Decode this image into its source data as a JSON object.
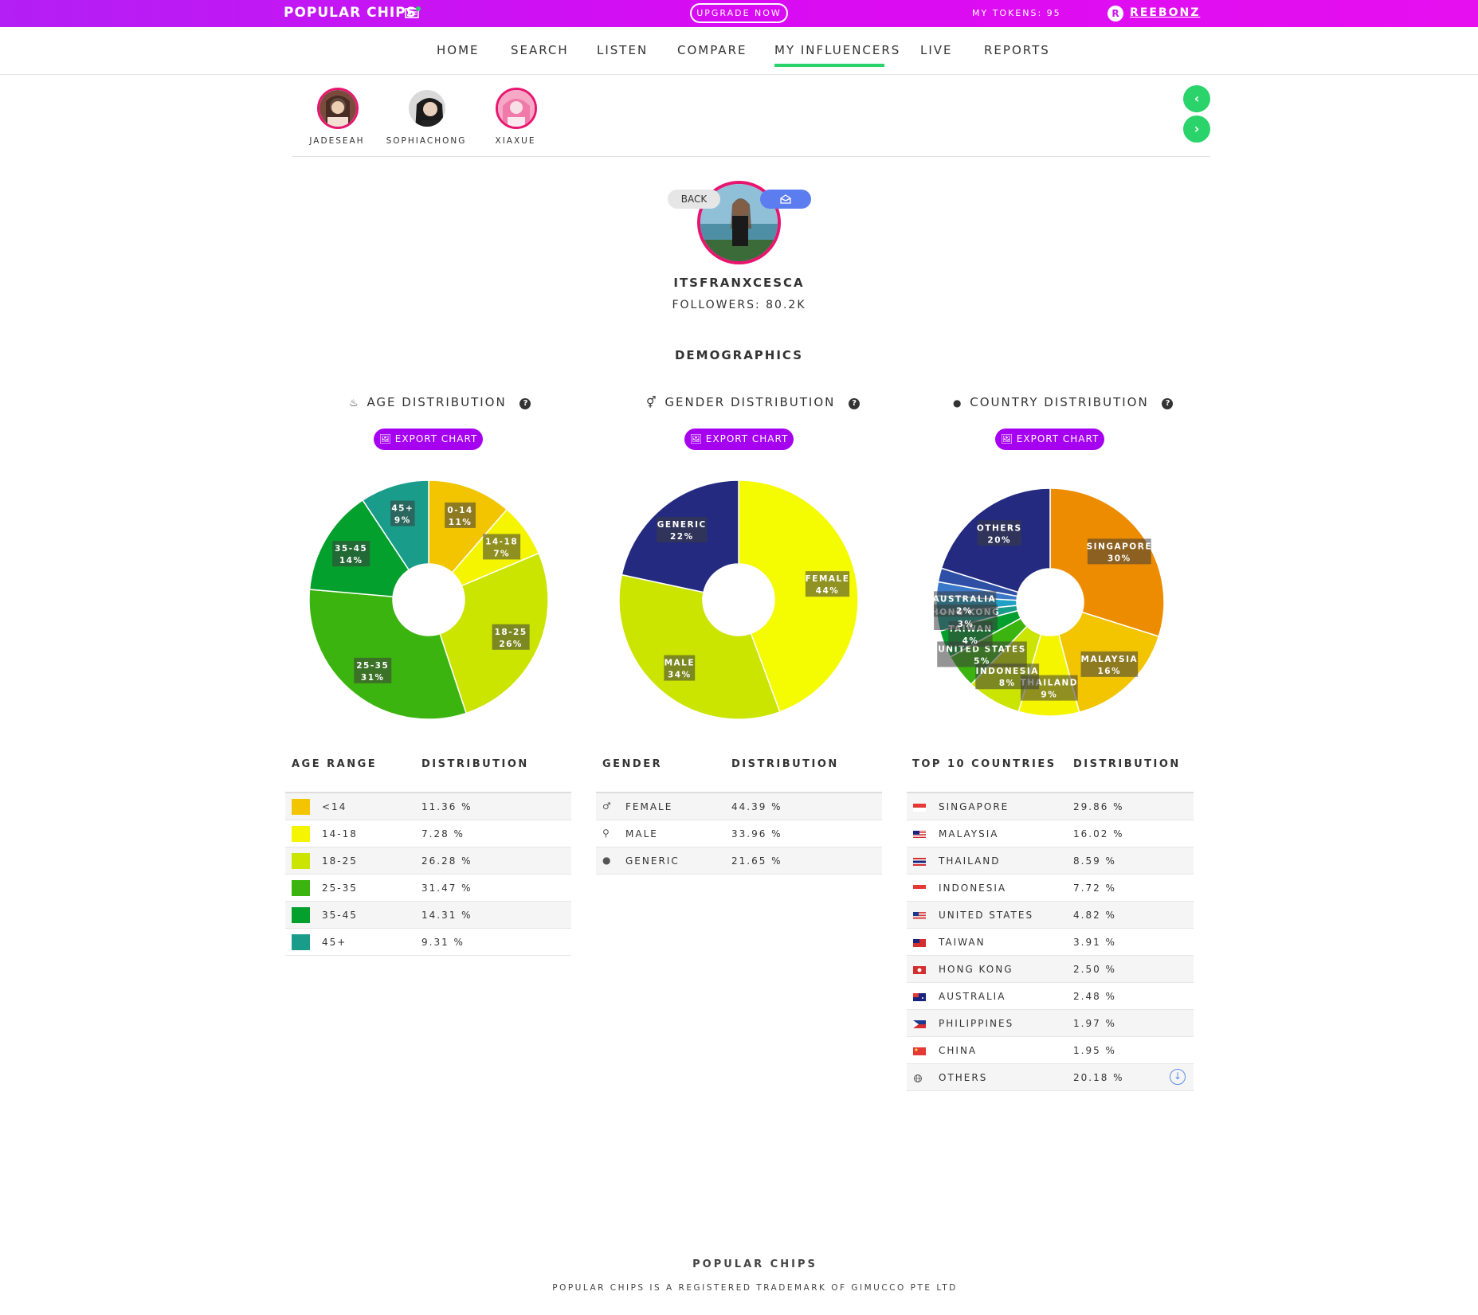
{
  "topbar": {
    "brand": "POPULAR CHIPS",
    "upgrade_label": "UPGRADE NOW",
    "tokens": "MY TOKENS: 95",
    "account": "REEBONZ",
    "account_icon": "R"
  },
  "nav": {
    "items": [
      "HOME",
      "SEARCH",
      "LISTEN",
      "COMPARE",
      "MY INFLUENCERS",
      "LIVE",
      "REPORTS"
    ],
    "active": "MY INFLUENCERS"
  },
  "influencers": [
    {
      "name": "JADESEAH"
    },
    {
      "name": "SOPHIACHONG"
    },
    {
      "name": "XIAXUE"
    }
  ],
  "strip_controls": {
    "prev_icon": "chevron-left-icon",
    "next_icon": "chevron-right-icon",
    "prev": "‹",
    "next": "›"
  },
  "profile": {
    "back_label": "BACK",
    "username": "ITSFRANXCESCA",
    "followers": "FOLLOWERS: 80.2K"
  },
  "demographics": {
    "title": "DEMOGRAPHICS",
    "age_title": "AGE DISTRIBUTION",
    "gender_title": "GENDER DISTRIBUTION",
    "country_title": "COUNTRY DISTRIBUTION",
    "export_label": "EXPORT CHART",
    "help": "?"
  },
  "chart_data": [
    {
      "type": "pie",
      "title": "AGE DISTRIBUTION",
      "categories": [
        "0-14",
        "14-18",
        "18-25",
        "25-35",
        "35-45",
        "45+"
      ],
      "values": [
        11.36,
        7.28,
        26.28,
        31.47,
        14.31,
        9.31
      ],
      "labels": [
        "11%",
        "7%",
        "26%",
        "31%",
        "14%",
        "9%"
      ],
      "colors": [
        "#f2c500",
        "#f5f500",
        "#cbe400",
        "#3cb40f",
        "#04a02d",
        "#1a9c8a"
      ]
    },
    {
      "type": "pie",
      "title": "GENDER DISTRIBUTION",
      "categories": [
        "FEMALE",
        "MALE",
        "GENERIC"
      ],
      "values": [
        44.39,
        33.96,
        21.65
      ],
      "labels": [
        "44%",
        "34%",
        "22%"
      ],
      "colors": [
        "#f5fb00",
        "#cbe400",
        "#232a80"
      ]
    },
    {
      "type": "pie",
      "title": "COUNTRY DISTRIBUTION",
      "categories": [
        "SINGAPORE",
        "MALAYSIA",
        "THAILAND",
        "INDONESIA",
        "UNITED STATES",
        "TAIWAN",
        "HONG KONG",
        "AUSTRALIA",
        "PHILIPPINES",
        "CHINA",
        "OTHERS"
      ],
      "values": [
        29.86,
        16.02,
        8.59,
        7.72,
        4.82,
        3.91,
        2.5,
        2.48,
        1.97,
        1.95,
        20.18
      ],
      "labels": [
        "30%",
        "16%",
        "9%",
        "8%",
        "5%",
        "4%",
        "3%",
        "2%",
        "",
        "",
        "20%"
      ],
      "colors": [
        "#ee8c00",
        "#f2c500",
        "#f5f500",
        "#cbe400",
        "#3cb40f",
        "#04a02d",
        "#1a9c8a",
        "#1fa0c4",
        "#3a78c9",
        "#2f4fa6",
        "#232a80"
      ]
    }
  ],
  "age_table": {
    "headers": [
      "AGE RANGE",
      "DISTRIBUTION"
    ],
    "rows": [
      {
        "label": "<14",
        "value": "11.36 %",
        "color": "#f2c500"
      },
      {
        "label": "14-18",
        "value": "7.28 %",
        "color": "#f5f500"
      },
      {
        "label": "18-25",
        "value": "26.28 %",
        "color": "#cbe400"
      },
      {
        "label": "25-35",
        "value": "31.47 %",
        "color": "#3cb40f"
      },
      {
        "label": "35-45",
        "value": "14.31 %",
        "color": "#04a02d"
      },
      {
        "label": "45+",
        "value": "9.31 %",
        "color": "#1a9c8a"
      }
    ]
  },
  "gender_table": {
    "headers": [
      "GENDER",
      "DISTRIBUTION"
    ],
    "rows": [
      {
        "label": "FEMALE",
        "value": "44.39 %",
        "icon": "male-symbol-icon",
        "glyph": "♂"
      },
      {
        "label": "MALE",
        "value": "33.96 %",
        "icon": "female-symbol-icon",
        "glyph": "⚲"
      },
      {
        "label": "GENERIC",
        "value": "21.65 %",
        "icon": "globe-icon",
        "glyph": "●"
      }
    ]
  },
  "country_table": {
    "headers": [
      "TOP 10 COUNTRIES",
      "DISTRIBUTION"
    ],
    "rows": [
      {
        "label": "SINGAPORE",
        "value": "29.86 %",
        "link": true,
        "flag": "sg"
      },
      {
        "label": "MALAYSIA",
        "value": "16.02 %",
        "link": true,
        "flag": "my"
      },
      {
        "label": "THAILAND",
        "value": "8.59 %",
        "link": true,
        "flag": "th"
      },
      {
        "label": "INDONESIA",
        "value": "7.72 %",
        "link": true,
        "flag": "id"
      },
      {
        "label": "UNITED STATES",
        "value": "4.82 %",
        "link": true,
        "flag": "us"
      },
      {
        "label": "TAIWAN",
        "value": "3.91 %",
        "link": true,
        "flag": "tw"
      },
      {
        "label": "HONG KONG",
        "value": "2.50 %",
        "link": true,
        "flag": "hk"
      },
      {
        "label": "AUSTRALIA",
        "value": "2.48 %",
        "link": true,
        "flag": "au"
      },
      {
        "label": "PHILIPPINES",
        "value": "1.97 %",
        "link": false,
        "flag": "ph"
      },
      {
        "label": "CHINA",
        "value": "1.95 %",
        "link": false,
        "flag": "cn"
      },
      {
        "label": "OTHERS",
        "value": "20.18 %",
        "link": false,
        "flag": "globe"
      }
    ]
  },
  "footer": {
    "title": "POPULAR CHIPS",
    "subtitle": "POPULAR CHIPS IS A REGISTERED TRADEMARK OF GIMUCCO PTE LTD"
  }
}
